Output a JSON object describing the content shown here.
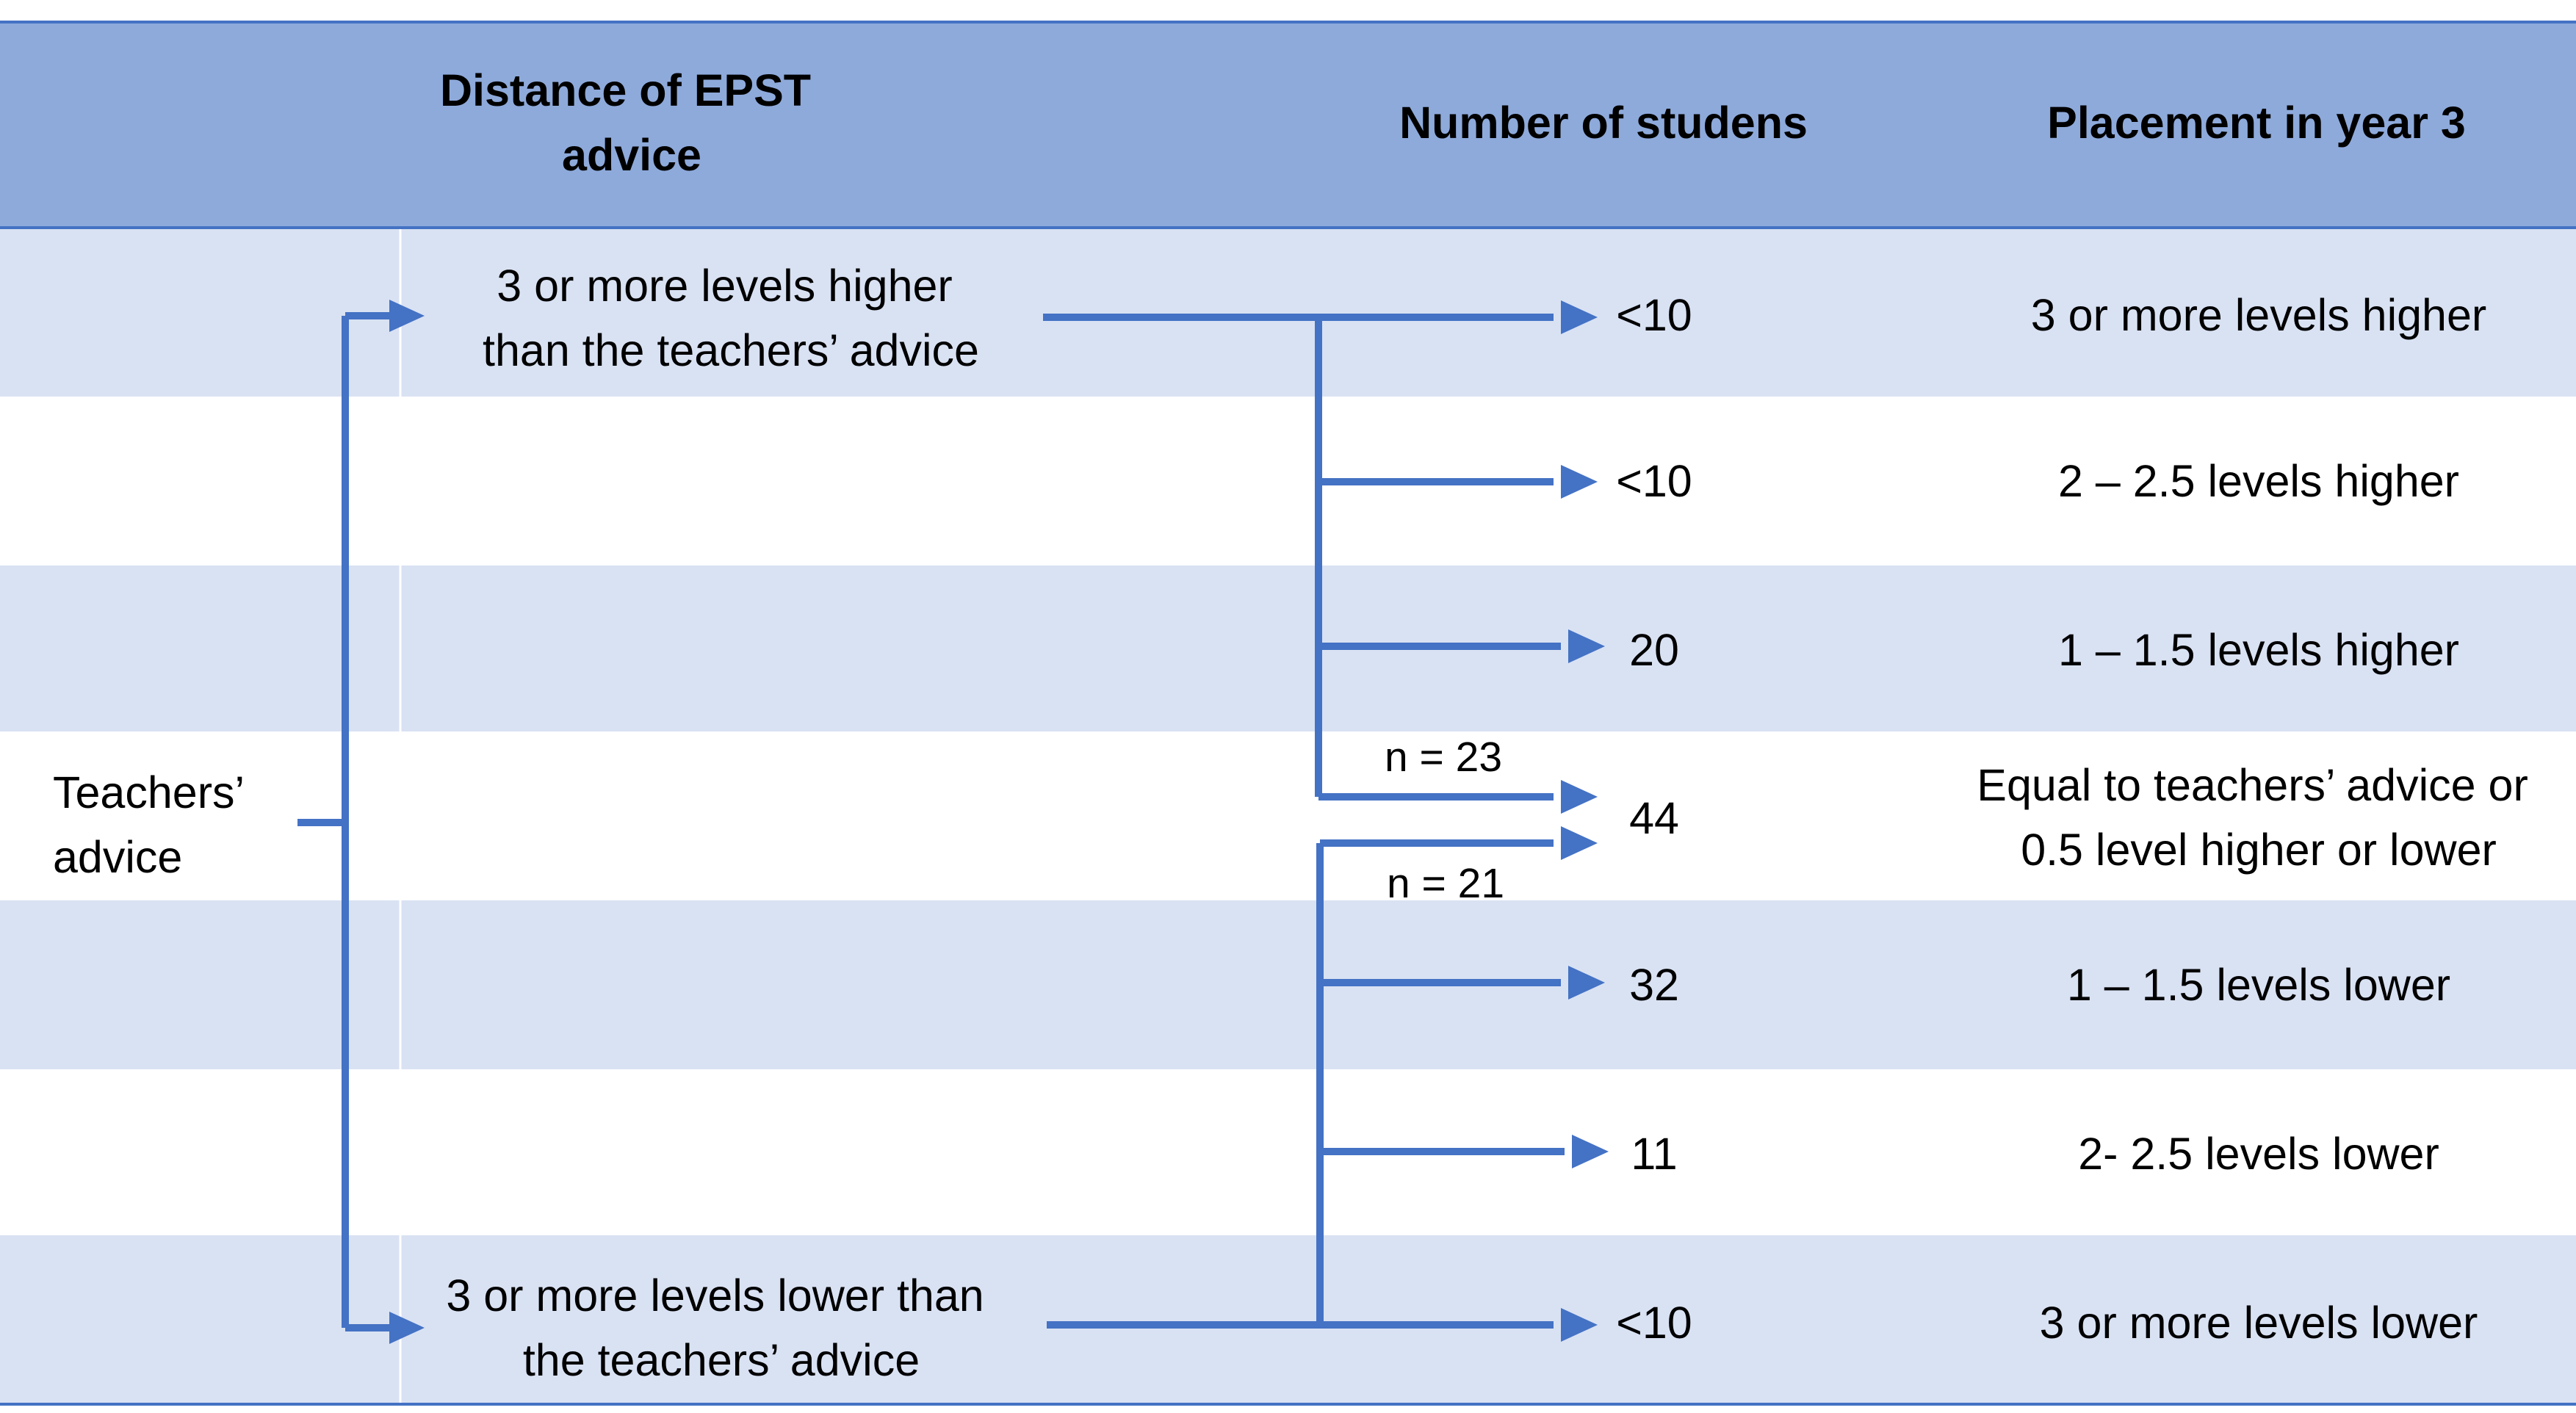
{
  "colors": {
    "header_bg": "#8eaadb",
    "band_dark": "#d9e2f3",
    "band_light": "#ffffff",
    "rule": "#4472c4",
    "arrow": "#4472c4",
    "text": "#000000"
  },
  "headers": {
    "distance": [
      "Distance of EPST",
      "advice"
    ],
    "students": "Number of studens",
    "placement": "Placement in year 3"
  },
  "source": {
    "label": [
      "Teachers’",
      "advice"
    ]
  },
  "branches": {
    "higher": [
      "3 or more levels higher",
      "than the teachers’ advice"
    ],
    "lower": [
      "3 or more levels lower than",
      "the teachers’ advice"
    ]
  },
  "split_labels": {
    "upper": "n = 23",
    "lower": "n = 21"
  },
  "rows": [
    {
      "count": "<10",
      "placement": [
        "3 or more levels higher"
      ]
    },
    {
      "count": "<10",
      "placement": [
        "2 – 2.5 levels higher"
      ]
    },
    {
      "count": "20",
      "placement": [
        "1 – 1.5 levels higher"
      ]
    },
    {
      "count": "44",
      "placement": [
        "Equal to teachers’ advice or",
        "0.5 level higher or lower"
      ]
    },
    {
      "count": "32",
      "placement": [
        "1 – 1.5 levels lower"
      ]
    },
    {
      "count": "11",
      "placement": [
        "2- 2.5 levels lower"
      ]
    },
    {
      "count": "<10",
      "placement": [
        "3 or more levels lower"
      ]
    }
  ]
}
